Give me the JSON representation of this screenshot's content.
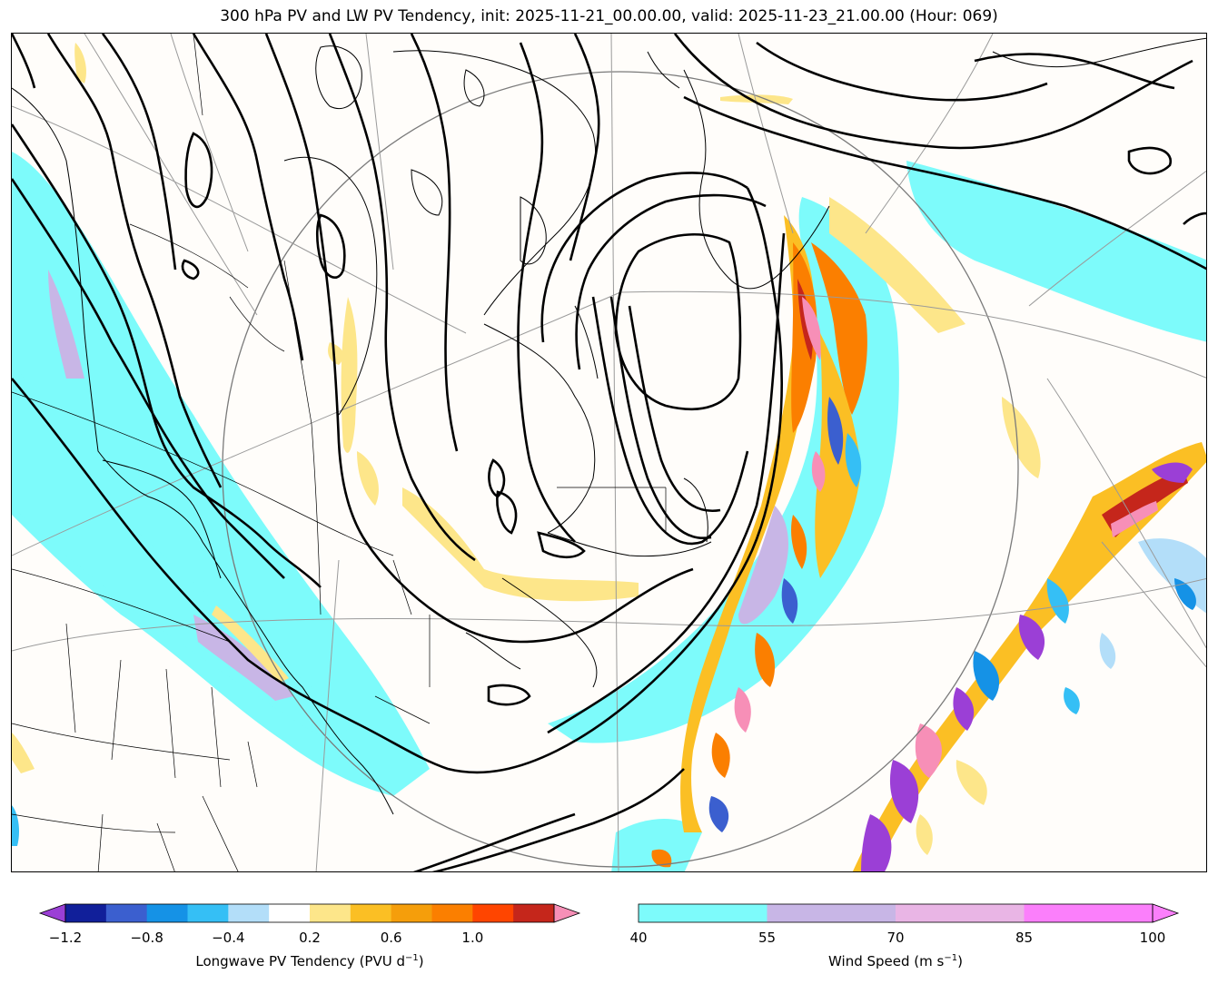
{
  "title": "300 hPa PV and LW PV Tendency, init: 2025-11-21_00.00.00, valid: 2025-11-23_21.00.00 (Hour: 069)",
  "colorbar_left": {
    "label_text": "Longwave PV Tendency (PVU d",
    "label_exp": "−1",
    "label_close": ")",
    "extend": "both",
    "ticks": [
      "−1.2",
      "−0.8",
      "−0.4",
      "0.2",
      "0.6",
      "1.0"
    ],
    "colors": [
      "#9b3fd6",
      "#111f9a",
      "#3b5fcf",
      "#1592e6",
      "#35bff5",
      "#b3def9",
      "#ffffff",
      "#fde68a",
      "#fbbf24",
      "#f59e0b",
      "#fb7f00",
      "#ff4500",
      "#c5261b",
      "#f78fb7"
    ]
  },
  "colorbar_right": {
    "label_text": "Wind Speed (m s",
    "label_exp": "−1",
    "label_close": ")",
    "extend": "max",
    "ticks": [
      "40",
      "55",
      "70",
      "85",
      "100"
    ],
    "colors": [
      "#7dfbfb",
      "#c8b6e6",
      "#e9b5e5",
      "#fb7ffb",
      "#fb7ffb"
    ]
  },
  "map": {
    "projection": "polar stereographic",
    "layers": [
      "PV contours (black)",
      "wind speed shading",
      "LW PV tendency shading",
      "coastlines and borders",
      "graticule"
    ]
  }
}
